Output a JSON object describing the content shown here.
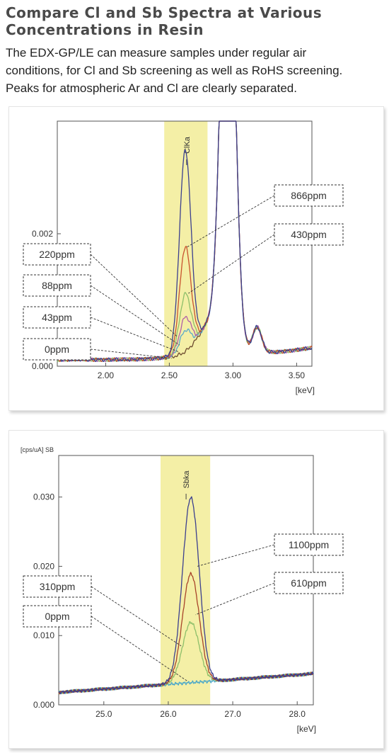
{
  "header": {
    "title_line1": "Compare Cl and Sb Spectra at Various",
    "title_line2": "Concentrations in Resin",
    "desc_line1": "The EDX-GP/LE can measure samples under regular air",
    "desc_line2": "conditions, for Cl and Sb screening as well as RoHS screening.",
    "desc_line3": "Peaks for atmospheric Ar and Cl are clearly separated."
  },
  "chart_data": [
    {
      "type": "line",
      "title": "",
      "xlabel": "[keV]",
      "ylabel": "",
      "xlim": [
        1.62,
        3.62
      ],
      "ylim": [
        0.0,
        0.0037
      ],
      "x_ticks": [
        {
          "value": 2.0,
          "label": "2.00"
        },
        {
          "value": 2.5,
          "label": "2.50"
        },
        {
          "value": 3.0,
          "label": "3.00"
        },
        {
          "value": 3.5,
          "label": "3.50"
        }
      ],
      "y_ticks": [
        {
          "value": 0.0,
          "label": "0.000"
        },
        {
          "value": 0.002,
          "label": "0.002"
        }
      ],
      "highlight": {
        "x_start": 2.46,
        "x_end": 2.8,
        "label": "ClKa",
        "color": "#f4efa6"
      },
      "series": [
        {
          "name": "866ppm",
          "color": "#3b3f8f",
          "peak_y": 0.00305
        },
        {
          "name": "430ppm",
          "color": "#c8532f",
          "peak_y": 0.00158
        },
        {
          "name": "220ppm",
          "color": "#8dbf6a",
          "peak_y": 0.00087
        },
        {
          "name": "88ppm",
          "color": "#b05fa8",
          "peak_y": 0.00052
        },
        {
          "name": "43ppm",
          "color": "#5aa9c9",
          "peak_y": 0.00032
        },
        {
          "name": "0ppm",
          "color": "#6b4a2e",
          "peak_y": 0.0
        }
      ],
      "shared": {
        "baseline_y": 0.0001,
        "ar_peak_x": 2.96,
        "ar_peak_y": 0.0074,
        "kb_peak_x": 3.19,
        "kb_peak_y": 0.00038
      },
      "annotations": [
        {
          "text": "866ppm",
          "side": "right",
          "points_to": {
            "x": 2.64,
            "y": 0.0018
          }
        },
        {
          "text": "430ppm",
          "side": "right",
          "points_to": {
            "x": 2.65,
            "y": 0.0011
          }
        },
        {
          "text": "220ppm",
          "side": "left",
          "points_to": {
            "x": 2.56,
            "y": 0.00045
          }
        },
        {
          "text": "88ppm",
          "side": "left",
          "points_to": {
            "x": 2.58,
            "y": 0.00032
          }
        },
        {
          "text": "43ppm",
          "side": "left",
          "points_to": {
            "x": 2.57,
            "y": 0.00022
          }
        },
        {
          "text": "0ppm",
          "side": "left",
          "points_to": {
            "x": 2.52,
            "y": 0.00012
          }
        }
      ]
    },
    {
      "type": "line",
      "title": "",
      "unit_label": "[cps/uA]  SB",
      "xlabel": "[keV]",
      "ylabel": "",
      "xlim": [
        24.3,
        28.25
      ],
      "ylim": [
        0.0,
        0.036
      ],
      "x_ticks": [
        {
          "value": 25.0,
          "label": "25.0"
        },
        {
          "value": 26.0,
          "label": "26.0"
        },
        {
          "value": 27.0,
          "label": "27.0"
        },
        {
          "value": 28.0,
          "label": "28.0"
        }
      ],
      "y_ticks": [
        {
          "value": 0.0,
          "label": "0.000"
        },
        {
          "value": 0.01,
          "label": "0.010"
        },
        {
          "value": 0.02,
          "label": "0.020"
        },
        {
          "value": 0.03,
          "label": "0.030"
        }
      ],
      "highlight": {
        "x_start": 25.88,
        "x_end": 26.65,
        "label": "Sbka",
        "color": "#f4efa6"
      },
      "series": [
        {
          "name": "1100ppm",
          "color": "#3b3f8f",
          "peak_y": 0.0285
        },
        {
          "name": "610ppm",
          "color": "#a8442a",
          "peak_y": 0.0175
        },
        {
          "name": "310ppm",
          "color": "#8dbf6a",
          "peak_y": 0.0105
        },
        {
          "name": "0ppm",
          "color": "#4aa7c9",
          "peak_y": 0.0028
        }
      ],
      "shared": {
        "peak_x": 26.35,
        "baseline_start": 0.0018,
        "baseline_end": 0.0045
      },
      "annotations": [
        {
          "text": "1100ppm",
          "side": "right",
          "points_to": {
            "x": 26.45,
            "y": 0.02
          }
        },
        {
          "text": "610ppm",
          "side": "right",
          "points_to": {
            "x": 26.42,
            "y": 0.013
          }
        },
        {
          "text": "310ppm",
          "side": "left",
          "points_to": {
            "x": 26.2,
            "y": 0.0085
          }
        },
        {
          "text": "0ppm",
          "side": "left",
          "points_to": {
            "x": 26.3,
            "y": 0.0034
          }
        }
      ]
    }
  ]
}
